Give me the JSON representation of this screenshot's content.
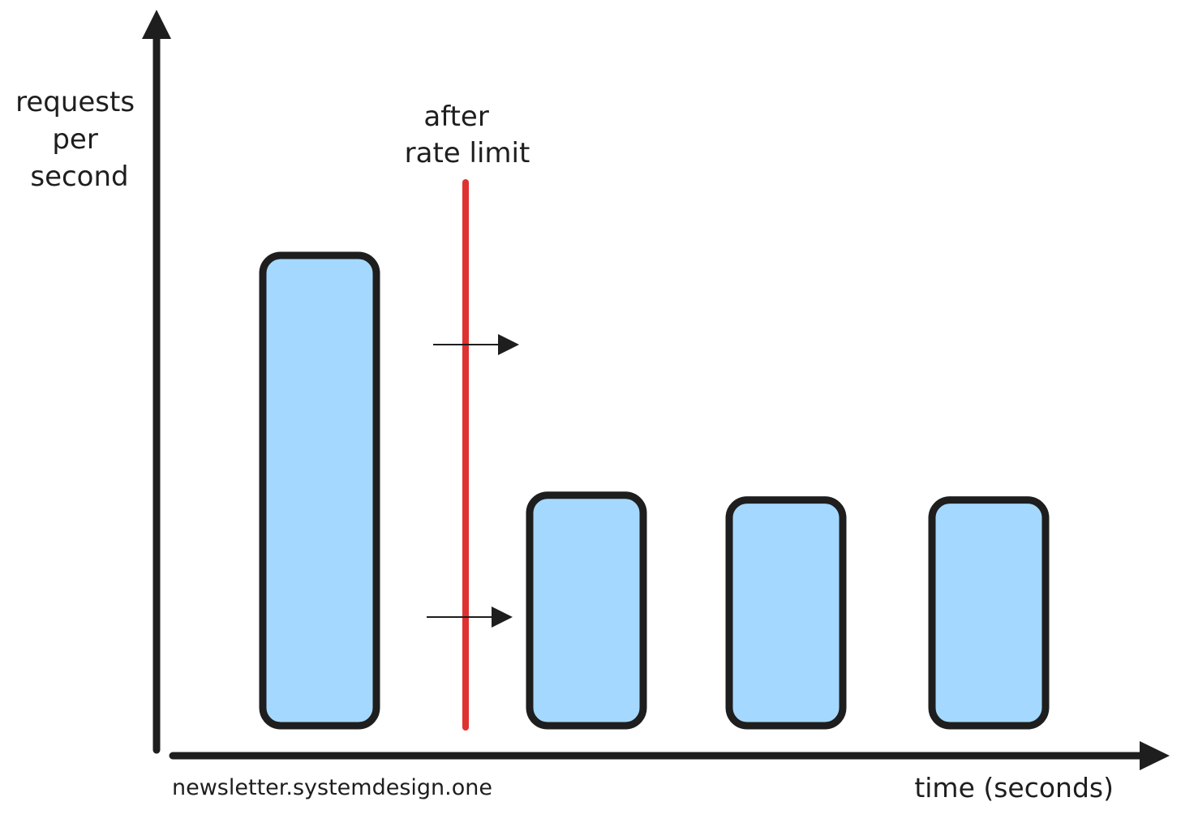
{
  "chart_data": {
    "type": "bar",
    "title": "",
    "xlabel": "time (seconds)",
    "ylabel": "requests per second",
    "ylabel_lines": [
      "requests",
      "per",
      "second"
    ],
    "categories": [
      "",
      "",
      "",
      ""
    ],
    "values": [
      100,
      49,
      48,
      48
    ],
    "ylim": [
      0,
      120
    ],
    "grid": false,
    "legend": "none",
    "annotation": {
      "lines": [
        "after",
        "rate limit"
      ],
      "position_after_bar": 1,
      "color": "#e03131"
    },
    "colors": {
      "bar_fill": "#a5d8ff",
      "bar_stroke": "#1e1e1e",
      "axis": "#1e1e1e",
      "limit_line": "#e03131"
    }
  },
  "credit": "newsletter.systemdesign.one"
}
